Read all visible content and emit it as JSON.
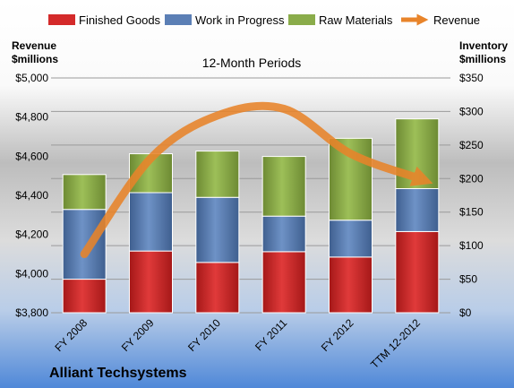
{
  "company": "Alliant Techsystems",
  "chart_data": {
    "type": "bar",
    "subtitle": "12-Month Periods",
    "categories": [
      "FY 2008",
      "FY 2009",
      "FY 2010",
      "FY 2011",
      "FY 2012",
      "TTM 12-2012"
    ],
    "stacked": true,
    "series": [
      {
        "name": "Finished Goods",
        "axis": "right",
        "color": "#d42a2a",
        "values": [
          50,
          92,
          75,
          91,
          83,
          121
        ]
      },
      {
        "name": "Work in Progress",
        "axis": "right",
        "color": "#5b7fb5",
        "values": [
          104,
          87,
          97,
          53,
          55,
          64
        ]
      },
      {
        "name": "Raw Materials",
        "axis": "right",
        "color": "#8aac4a",
        "values": [
          52,
          58,
          69,
          89,
          122,
          104
        ]
      },
      {
        "name": "Revenue",
        "axis": "left",
        "type": "line",
        "smooth": true,
        "color": "#e8842a",
        "values": [
          4100,
          4590,
          4808,
          4842,
          4613,
          4490
        ]
      }
    ],
    "left_axis": {
      "title_line1": "Revenue",
      "title_line2": "$millions",
      "min": 3800,
      "max": 5000,
      "step": 200,
      "ticks": [
        "$3,800",
        "$4,000",
        "$4,200",
        "$4,400",
        "$4,600",
        "$4,800",
        "$5,000"
      ]
    },
    "right_axis": {
      "title_line1": "Inventory",
      "title_line2": "$millions",
      "min": 0,
      "max": 350,
      "step": 50,
      "ticks": [
        "$0",
        "$50",
        "$100",
        "$150",
        "$200",
        "$250",
        "$300",
        "$350"
      ]
    },
    "grid": true,
    "legend_position": "top"
  }
}
